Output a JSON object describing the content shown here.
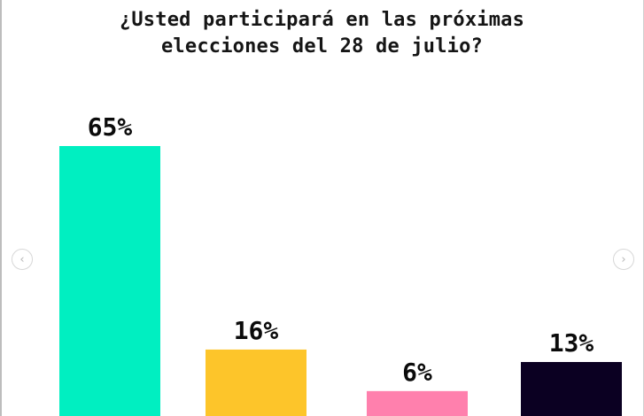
{
  "chart_data": {
    "type": "bar",
    "title": "¿Usted participará en las próximas\nelecciones del 28 de julio?",
    "categories": [
      "",
      "",
      "",
      ""
    ],
    "values": [
      65,
      16,
      6,
      13
    ],
    "value_labels": [
      "65%",
      "16%",
      "6%",
      "13%"
    ],
    "colors": [
      "#00efc1",
      "#fdc52a",
      "#ff80ad",
      "#0b0022"
    ],
    "ylim": [
      0,
      65
    ],
    "grid": false,
    "legend": "none"
  },
  "nav": {
    "prev_icon": "‹",
    "next_icon": "›"
  }
}
